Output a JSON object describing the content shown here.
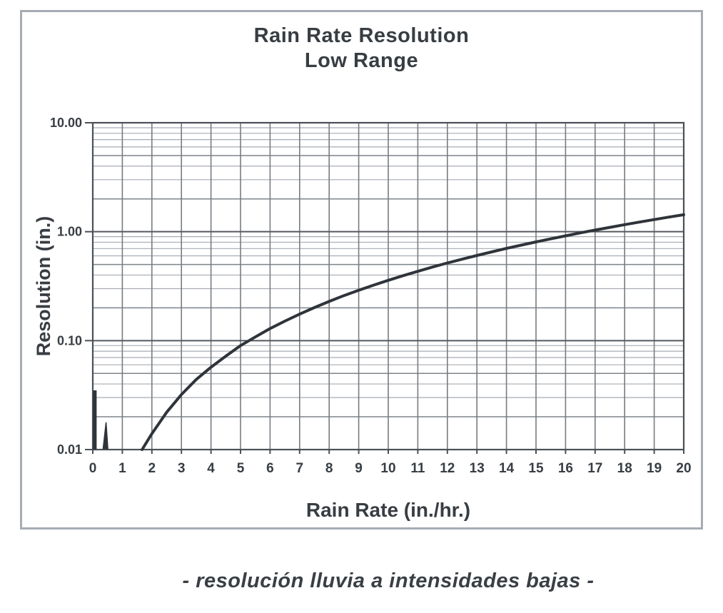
{
  "chart": {
    "title_line1": "Rain Rate Resolution",
    "title_line2": "Low Range",
    "xlabel": "Rain Rate (in./hr.)",
    "ylabel": "Resolution (in.)"
  },
  "caption": {
    "text": "- resolución lluvia a intensidades bajas -"
  },
  "chart_data": {
    "type": "line",
    "title": "Rain Rate Resolution",
    "subtitle": "Low Range",
    "xlabel": "Rain Rate (in./hr.)",
    "ylabel": "Resolution (in.)",
    "x_scale": "linear",
    "y_scale": "log",
    "xlim": [
      0,
      20
    ],
    "ylim": [
      0.01,
      10
    ],
    "x_ticks": [
      0,
      1,
      2,
      3,
      4,
      5,
      6,
      7,
      8,
      9,
      10,
      11,
      12,
      13,
      14,
      15,
      16,
      17,
      18,
      19,
      20
    ],
    "y_ticks": [
      10,
      1,
      0.1,
      0.01
    ],
    "y_tick_labels": [
      "10.00",
      "1.00",
      "0.10",
      "0.01"
    ],
    "grid": "log minor gridlines on, vertical gridline at every x integer",
    "legend": "none",
    "series": [
      {
        "name": "resolution-curve",
        "x": [
          1.67,
          2,
          2.5,
          3,
          3.5,
          4,
          4.5,
          5,
          5.5,
          6,
          6.5,
          7,
          7.5,
          8,
          8.5,
          9,
          9.5,
          10,
          10.5,
          11,
          11.5,
          12,
          12.5,
          13,
          13.5,
          14,
          14.5,
          15,
          15.5,
          16,
          16.5,
          17,
          17.5,
          18,
          18.5,
          19,
          19.5,
          20
        ],
        "y": [
          0.01,
          0.014,
          0.022,
          0.032,
          0.044,
          0.057,
          0.072,
          0.09,
          0.108,
          0.129,
          0.151,
          0.175,
          0.201,
          0.229,
          0.259,
          0.29,
          0.323,
          0.358,
          0.395,
          0.433,
          0.474,
          0.516,
          0.559,
          0.605,
          0.652,
          0.702,
          0.753,
          0.806,
          0.86,
          0.916,
          0.975,
          1.035,
          1.096,
          1.16,
          1.225,
          1.292,
          1.361,
          1.432
        ]
      },
      {
        "name": "low-rate-bar",
        "note": "thin vertical mark just right of y-axis",
        "x": [
          0.07,
          0.07
        ],
        "y": [
          0.01,
          0.035
        ]
      },
      {
        "name": "low-rate-spike",
        "note": "small filled spike near x=0.45",
        "polygon": [
          [
            0.35,
            0.0102
          ],
          [
            0.45,
            0.0178
          ],
          [
            0.51,
            0.0102
          ]
        ]
      }
    ],
    "colors": {
      "ink": "#2f343a",
      "text": "#383d43",
      "axis_frame": "#4b5056",
      "grid_major": "#54595f",
      "grid_mid": "#7e848a",
      "grid_minor": "#a6acb2",
      "grid_vertical": "#777c82",
      "figure_border": "#a6acb3",
      "background": "#ffffff"
    }
  }
}
